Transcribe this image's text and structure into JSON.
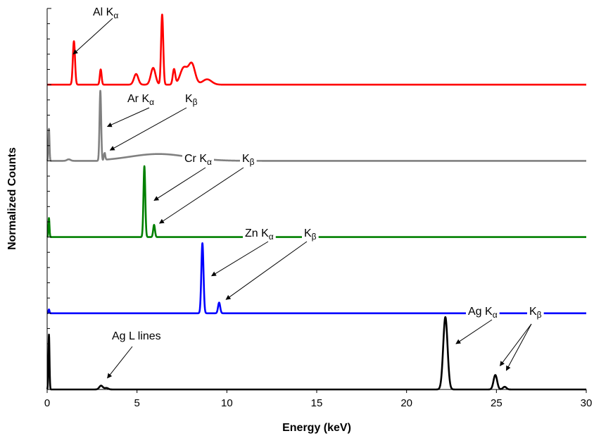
{
  "chart_data": {
    "type": "line",
    "title": "",
    "xlabel": "Energy (keV)",
    "ylabel": "Normalized Counts",
    "xlim": [
      0,
      30
    ],
    "x_ticks": [
      "0",
      "5",
      "10",
      "15",
      "20",
      "25",
      "30"
    ],
    "y_tick_labels": "none",
    "grid": false,
    "legend": "none",
    "series": [
      {
        "color": "#ff0000",
        "peaks": [
          {
            "x": 1.49,
            "height": 0.57,
            "width": 0.06
          },
          {
            "x": 2.98,
            "height": 0.2,
            "width": 0.05
          },
          {
            "x": 4.95,
            "height": 0.14,
            "width": 0.12
          },
          {
            "x": 5.9,
            "height": 0.22,
            "width": 0.13
          },
          {
            "x": 6.4,
            "height": 0.92,
            "width": 0.06
          },
          {
            "x": 7.06,
            "height": 0.2,
            "width": 0.07
          },
          {
            "x": 7.6,
            "height": 0.22,
            "width": 0.2
          },
          {
            "x": 8.05,
            "height": 0.27,
            "width": 0.18
          },
          {
            "x": 8.9,
            "height": 0.07,
            "width": 0.25
          }
        ]
      },
      {
        "color": "#808080",
        "baseline_bump": {
          "center": 6.2,
          "height": 0.09,
          "width": 1.6
        },
        "peaks": [
          {
            "x": 0.1,
            "height": 0.42,
            "width": 0.03
          },
          {
            "x": 1.2,
            "height": 0.02,
            "width": 0.1
          },
          {
            "x": 2.96,
            "height": 0.92,
            "width": 0.045
          },
          {
            "x": 3.19,
            "height": 0.1,
            "width": 0.04
          }
        ]
      },
      {
        "color": "#008000",
        "peaks": [
          {
            "x": 0.1,
            "height": 0.25,
            "width": 0.03
          },
          {
            "x": 5.41,
            "height": 0.93,
            "width": 0.05
          },
          {
            "x": 5.95,
            "height": 0.16,
            "width": 0.05
          }
        ]
      },
      {
        "color": "#0000ff",
        "peaks": [
          {
            "x": 0.1,
            "height": 0.05,
            "width": 0.03
          },
          {
            "x": 8.64,
            "height": 0.92,
            "width": 0.06
          },
          {
            "x": 9.57,
            "height": 0.14,
            "width": 0.06
          }
        ]
      },
      {
        "color": "#000000",
        "peaks": [
          {
            "x": 0.1,
            "height": 0.72,
            "width": 0.03
          },
          {
            "x": 3.0,
            "height": 0.05,
            "width": 0.1
          },
          {
            "x": 3.3,
            "height": 0.02,
            "width": 0.1
          },
          {
            "x": 22.16,
            "height": 0.95,
            "width": 0.12
          },
          {
            "x": 24.94,
            "height": 0.19,
            "width": 0.1
          },
          {
            "x": 25.46,
            "height": 0.035,
            "width": 0.1
          }
        ]
      }
    ],
    "annotations": [
      {
        "name": "Al",
        "line": "K",
        "sub": "α",
        "series": 0,
        "arrow_to": [
          [
            1.45,
            0.4
          ]
        ]
      },
      {
        "name": "Ar",
        "line": "K",
        "sub": "α",
        "series": 1,
        "arrow_to": [
          [
            3.35,
            0.45
          ]
        ]
      },
      {
        "name": "",
        "line": "K",
        "sub": "β",
        "series": 1,
        "arrow_to": [
          [
            3.5,
            0.14
          ]
        ]
      },
      {
        "name": "Cr",
        "line": "K",
        "sub": "α",
        "series": 2,
        "arrow_to": [
          [
            5.95,
            0.48
          ]
        ]
      },
      {
        "name": "",
        "line": "K",
        "sub": "β",
        "series": 2,
        "arrow_to": [
          [
            6.25,
            0.18
          ]
        ]
      },
      {
        "name": "Zn",
        "line": "K",
        "sub": "α",
        "series": 3,
        "arrow_to": [
          [
            9.15,
            0.49
          ]
        ]
      },
      {
        "name": "",
        "line": "K",
        "sub": "β",
        "series": 3,
        "arrow_to": [
          [
            9.95,
            0.18
          ]
        ]
      },
      {
        "name": "Ag",
        "line": "K",
        "sub": "α",
        "series": 4,
        "arrow_to": [
          [
            22.75,
            0.6
          ]
        ]
      },
      {
        "name": "",
        "line": "K",
        "sub": "β",
        "series": 4,
        "arrow_to": [
          [
            25.2,
            0.31
          ],
          [
            25.55,
            0.25
          ]
        ]
      },
      {
        "name": "Ag",
        "line": "L lines",
        "sub": "",
        "series": 4,
        "arrow_to": [
          [
            3.35,
            0.15
          ]
        ]
      }
    ]
  }
}
